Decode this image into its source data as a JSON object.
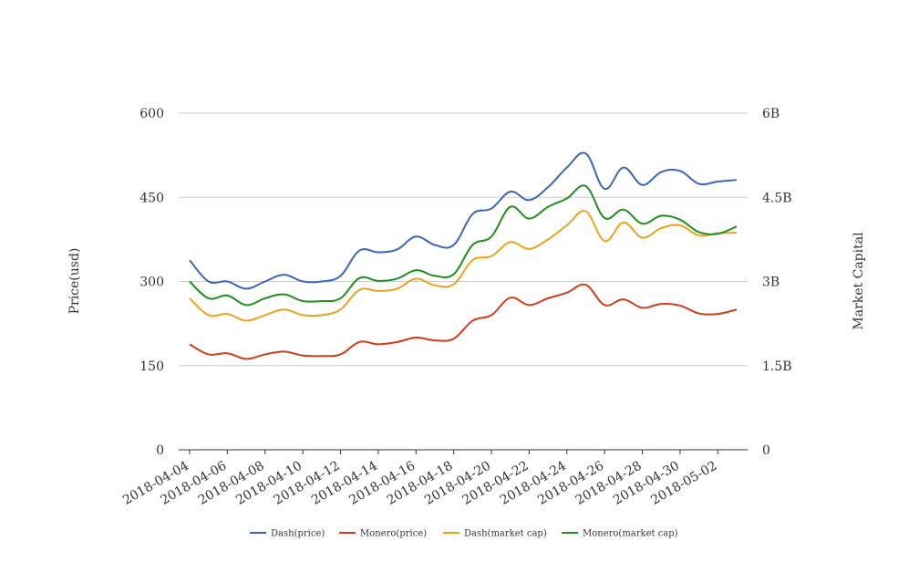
{
  "chart_data": {
    "type": "line",
    "title": "",
    "xlabel": "",
    "ylabel": "Price(usd)",
    "y2label": "Market Capital",
    "ylim": [
      0,
      600
    ],
    "y2lim": [
      0,
      6000000000
    ],
    "yticks": [
      "0",
      "150",
      "300",
      "450",
      "600"
    ],
    "y2ticks": [
      "0",
      "1.5B",
      "3B",
      "4.5B",
      "6B"
    ],
    "grid": "horizontal",
    "legend": "bottom",
    "x": [
      "2018-04-04",
      "2018-04-05",
      "2018-04-06",
      "2018-04-07",
      "2018-04-08",
      "2018-04-09",
      "2018-04-10",
      "2018-04-11",
      "2018-04-12",
      "2018-04-13",
      "2018-04-14",
      "2018-04-15",
      "2018-04-16",
      "2018-04-17",
      "2018-04-18",
      "2018-04-19",
      "2018-04-20",
      "2018-04-21",
      "2018-04-22",
      "2018-04-23",
      "2018-04-24",
      "2018-04-25",
      "2018-04-26",
      "2018-04-27",
      "2018-04-28",
      "2018-04-29",
      "2018-04-30",
      "2018-05-01",
      "2018-05-02",
      "2018-05-03"
    ],
    "xticks": [
      "2018-04-04",
      "2018-04-06",
      "2018-04-08",
      "2018-04-10",
      "2018-04-12",
      "2018-04-14",
      "2018-04-16",
      "2018-04-18",
      "2018-04-20",
      "2018-04-22",
      "2018-04-24",
      "2018-04-26",
      "2018-04-28",
      "2018-04-30",
      "2018-05-02"
    ],
    "series": [
      {
        "name": "Dash(price)",
        "axis": "left",
        "color": "#3a66b5",
        "values": [
          338,
          300,
          300,
          287,
          300,
          312,
          300,
          300,
          310,
          355,
          352,
          357,
          380,
          365,
          365,
          420,
          430,
          460,
          445,
          468,
          503,
          528,
          465,
          503,
          472,
          495,
          497,
          474,
          478,
          481
        ]
      },
      {
        "name": "Monero(price)",
        "axis": "left",
        "color": "#cc3e1c",
        "values": [
          188,
          170,
          172,
          162,
          170,
          175,
          168,
          167,
          170,
          192,
          188,
          192,
          200,
          195,
          198,
          230,
          240,
          271,
          258,
          270,
          280,
          294,
          258,
          268,
          253,
          260,
          257,
          243,
          242,
          250
        ]
      },
      {
        "name": "Dash(market cap)",
        "axis": "right",
        "color": "#eba21d",
        "values": [
          2700000000,
          2400000000,
          2420000000,
          2300000000,
          2400000000,
          2500000000,
          2400000000,
          2400000000,
          2500000000,
          2850000000,
          2830000000,
          2870000000,
          3050000000,
          2930000000,
          2950000000,
          3380000000,
          3450000000,
          3700000000,
          3580000000,
          3750000000,
          4000000000,
          4250000000,
          3720000000,
          4050000000,
          3780000000,
          3950000000,
          4000000000,
          3820000000,
          3860000000,
          3870000000
        ]
      },
      {
        "name": "Monero(market cap)",
        "axis": "right",
        "color": "#1f8e1f",
        "values": [
          3000000000,
          2700000000,
          2750000000,
          2580000000,
          2700000000,
          2770000000,
          2650000000,
          2650000000,
          2700000000,
          3060000000,
          3010000000,
          3050000000,
          3200000000,
          3100000000,
          3130000000,
          3650000000,
          3800000000,
          4330000000,
          4120000000,
          4330000000,
          4480000000,
          4700000000,
          4130000000,
          4280000000,
          4030000000,
          4170000000,
          4100000000,
          3880000000,
          3850000000,
          3980000000
        ]
      }
    ]
  }
}
